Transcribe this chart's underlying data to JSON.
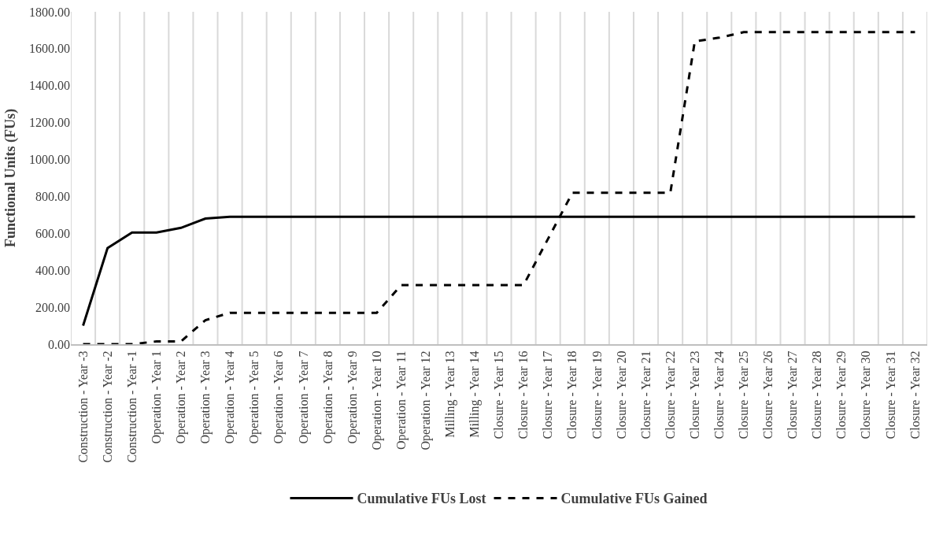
{
  "chart_data": {
    "type": "line",
    "ylabel": "Functional Units (FUs)",
    "categories": [
      "Construction - Year -3",
      "Construction - Year -2",
      "Construction - Year -1",
      "Operation - Year 1",
      "Operation - Year 2",
      "Operation - Year 3",
      "Operation - Year 4",
      "Operation - Year 5",
      "Operation - Year 6",
      "Operation - Year 7",
      "Operation - Year 8",
      "Operation - Year 9",
      "Operation - Year 10",
      "Operation - Year 11",
      "Operation - Year 12",
      "Milling - Year 13",
      "Milling - Year 14",
      "Closure - Year 15",
      "Closure - Year 16",
      "Closure - Year 17",
      "Closure - Year 18",
      "Closure - Year 19",
      "Closure - Year 20",
      "Closure - Year 21",
      "Closure - Year 22",
      "Closure - Year 23",
      "Closure - Year 24",
      "Closure - Year 25",
      "Closure - Year 26",
      "Closure - Year 27",
      "Closure - Year 28",
      "Closure - Year 29",
      "Closure - Year 30",
      "Closure - Year 31",
      "Closure - Year 32"
    ],
    "series": [
      {
        "name": "Cumulative FUs Lost",
        "color": "#000000",
        "line_style": "solid",
        "values": [
          100,
          520,
          605,
          605,
          630,
          680,
          690,
          690,
          690,
          690,
          690,
          690,
          690,
          690,
          690,
          690,
          690,
          690,
          690,
          690,
          690,
          690,
          690,
          690,
          690,
          690,
          690,
          690,
          690,
          690,
          690,
          690,
          690,
          690,
          690
        ]
      },
      {
        "name": "Cumulative FUs Gained",
        "color": "#000000",
        "line_style": "dashed",
        "values": [
          0,
          0,
          0,
          15,
          15,
          130,
          170,
          170,
          170,
          170,
          170,
          170,
          170,
          320,
          320,
          320,
          320,
          320,
          320,
          570,
          820,
          820,
          820,
          820,
          820,
          1640,
          1660,
          1690,
          1690,
          1690,
          1690,
          1690,
          1690,
          1690,
          1690
        ]
      }
    ],
    "ylim": [
      0,
      1800
    ],
    "yticks": [
      {
        "value": 0,
        "label": "0.00"
      },
      {
        "value": 200,
        "label": "200.00"
      },
      {
        "value": 400,
        "label": "400.00"
      },
      {
        "value": 600,
        "label": "600.00"
      },
      {
        "value": 800,
        "label": "800.00"
      },
      {
        "value": 1000,
        "label": "1000.00"
      },
      {
        "value": 1200,
        "label": "1200.00"
      },
      {
        "value": 1400,
        "label": "1400.00"
      },
      {
        "value": 1600,
        "label": "1600.00"
      },
      {
        "value": 1800,
        "label": "1800.00"
      }
    ],
    "grid": "x",
    "legend": "bottom",
    "marker": "none"
  }
}
